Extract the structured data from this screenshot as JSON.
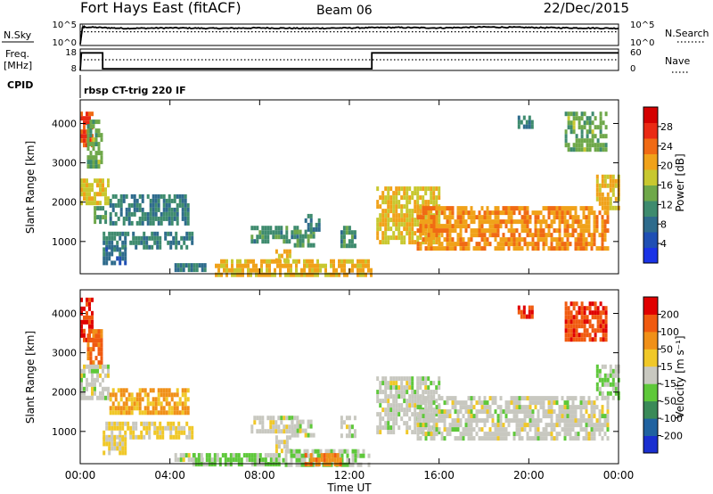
{
  "header": {
    "station": "Fort Hays East (fitACF)",
    "beam": "Beam 06",
    "date": "22/Dec/2015"
  },
  "strip_nsky": {
    "left_label": "N.Sky",
    "right_label": "N.Search",
    "left_ticks": [
      "10^5",
      "10^0"
    ],
    "right_ticks": [
      "10^5",
      "10^0"
    ]
  },
  "strip_freq": {
    "left_label_1": "Freq.",
    "left_label_2": "[MHz]",
    "right_label": "Nave",
    "left_ticks": [
      "18",
      "8"
    ],
    "right_ticks": [
      "60",
      "0"
    ]
  },
  "strip_cpid": {
    "label": "CPID",
    "program": "rbsp CT-trig 220 IF"
  },
  "x_axis": {
    "title": "Time UT",
    "ticks": [
      "00:00",
      "04:00",
      "08:00",
      "12:00",
      "16:00",
      "20:00",
      "00:00"
    ]
  },
  "panels": {
    "power": {
      "ylabel": "Slant Range [km]",
      "yticks": [
        "4000",
        "3000",
        "2000",
        "1000"
      ],
      "colorbar_label": "Power [dB]",
      "colorbar_ticks": [
        "28",
        "24",
        "20",
        "16",
        "12",
        "8",
        "4"
      ],
      "colors": [
        "#1a33e6",
        "#1f4fb4",
        "#2e6b8c",
        "#3e8b6e",
        "#6fa84a",
        "#c8c830",
        "#f0a21a",
        "#f06a14",
        "#ea2a14",
        "#d40000"
      ]
    },
    "velocity": {
      "ylabel": "Slant Range [km]",
      "yticks": [
        "4000",
        "3000",
        "2000",
        "1000"
      ],
      "colorbar_label": "Velocity [m s⁻¹]",
      "colorbar_ticks": [
        "200",
        "100",
        "50",
        "15",
        "-15",
        "-50",
        "-100",
        "-200"
      ],
      "colors": [
        "#1a2fd0",
        "#2062a0",
        "#3a8a58",
        "#5ec83a",
        "#c8c8c0",
        "#f0c828",
        "#f09018",
        "#f05a10",
        "#e00000"
      ]
    }
  },
  "chart_data": [
    {
      "type": "line",
      "name_left": "N.Sky",
      "name_right": "N.Search",
      "x_unit": "hours UT",
      "xlim": [
        0,
        24
      ],
      "ylim": [
        0,
        5
      ],
      "series": [
        {
          "name": "N.Sky",
          "style": "solid",
          "x": [
            0,
            0.1,
            0.2,
            2,
            4,
            6,
            8,
            10,
            12,
            14,
            16,
            18,
            20,
            22,
            24
          ],
          "y": [
            0.3,
            4.2,
            4.3,
            4.0,
            4.1,
            4.0,
            4.1,
            4.0,
            4.1,
            4.2,
            4.1,
            4.3,
            4.2,
            4.1,
            4.0
          ]
        },
        {
          "name": "N.Search",
          "style": "dotted",
          "x": [
            0,
            4,
            8,
            12,
            16,
            20,
            24
          ],
          "y": [
            3.2,
            3.2,
            3.2,
            3.2,
            3.2,
            3.2,
            3.2
          ]
        }
      ]
    },
    {
      "type": "line",
      "x_unit": "hours UT",
      "xlim": [
        0,
        24
      ],
      "ylim_left": [
        8,
        18
      ],
      "ylim_right": [
        0,
        60
      ],
      "series": [
        {
          "name": "Freq.",
          "style": "solid",
          "x": [
            0,
            0.05,
            1.0,
            1.0,
            13.0,
            13.0,
            24
          ],
          "y": [
            8,
            16.2,
            16.2,
            8.8,
            8.8,
            16.2,
            16.2
          ]
        },
        {
          "name": "Nave",
          "style": "dotted",
          "x": [
            0,
            4,
            8,
            12,
            16,
            20,
            24
          ],
          "y": [
            30,
            30,
            30,
            30,
            30,
            30,
            30
          ]
        }
      ]
    },
    {
      "type": "heatmap",
      "quantity": "Power",
      "units": "dB",
      "xlabel": "Time UT",
      "ylabel": "Slant Range [km]",
      "xlim": [
        0,
        24
      ],
      "ylim": [
        180,
        4600
      ],
      "clim": [
        0,
        32
      ],
      "regions": [
        {
          "x": [
            0,
            0.5
          ],
          "y": [
            3500,
            4300
          ],
          "v": 26
        },
        {
          "x": [
            0.3,
            0.9
          ],
          "y": [
            2900,
            4100
          ],
          "v": 14
        },
        {
          "x": [
            0,
            1.2
          ],
          "y": [
            2000,
            2600
          ],
          "v": 18
        },
        {
          "x": [
            0.6,
            1.1
          ],
          "y": [
            1500,
            1900
          ],
          "v": 12
        },
        {
          "x": [
            1.3,
            4.8
          ],
          "y": [
            1500,
            2200
          ],
          "v": 10
        },
        {
          "x": [
            1.0,
            5.0
          ],
          "y": [
            850,
            1250
          ],
          "v": 10
        },
        {
          "x": [
            1.0,
            2.0
          ],
          "y": [
            500,
            850
          ],
          "v": 8
        },
        {
          "x": [
            4.2,
            5.6
          ],
          "y": [
            250,
            450
          ],
          "v": 9
        },
        {
          "x": [
            7.6,
            9.8
          ],
          "y": [
            1050,
            1400
          ],
          "v": 11
        },
        {
          "x": [
            8.7,
            9.4
          ],
          "y": [
            550,
            800
          ],
          "v": 20
        },
        {
          "x": [
            9.4,
            10.4
          ],
          "y": [
            850,
            1300
          ],
          "v": 12
        },
        {
          "x": [
            10.0,
            10.6
          ],
          "y": [
            1350,
            1700
          ],
          "v": 10
        },
        {
          "x": [
            11.6,
            12.3
          ],
          "y": [
            850,
            1400
          ],
          "v": 11
        },
        {
          "x": [
            6.0,
            13.0
          ],
          "y": [
            200,
            550
          ],
          "v": 20
        },
        {
          "x": [
            13.2,
            16.0
          ],
          "y": [
            1000,
            2400
          ],
          "v": 19
        },
        {
          "x": [
            15.0,
            23.5
          ],
          "y": [
            800,
            1900
          ],
          "v": 22
        },
        {
          "x": [
            23.0,
            24.0
          ],
          "y": [
            1800,
            2700
          ],
          "v": 20
        },
        {
          "x": [
            19.5,
            20.2
          ],
          "y": [
            3900,
            4200
          ],
          "v": 10
        },
        {
          "x": [
            21.6,
            23.4
          ],
          "y": [
            3300,
            4300
          ],
          "v": 14
        }
      ]
    },
    {
      "type": "heatmap",
      "quantity": "Velocity",
      "units": "m s-1",
      "xlabel": "Time UT",
      "ylabel": "Slant Range [km]",
      "xlim": [
        0,
        24
      ],
      "ylim": [
        180,
        4600
      ],
      "clim": [
        -250,
        250
      ],
      "regions": [
        {
          "x": [
            0,
            0.5
          ],
          "y": [
            3300,
            4400
          ],
          "v": 210
        },
        {
          "x": [
            0.3,
            0.9
          ],
          "y": [
            2800,
            3600
          ],
          "v": 160
        },
        {
          "x": [
            0,
            1.2
          ],
          "y": [
            1900,
            2700
          ],
          "v": 0
        },
        {
          "x": [
            1.3,
            4.8
          ],
          "y": [
            1500,
            2100
          ],
          "v": 90
        },
        {
          "x": [
            1.0,
            5.0
          ],
          "y": [
            850,
            1250
          ],
          "v": 40
        },
        {
          "x": [
            1.0,
            2.0
          ],
          "y": [
            500,
            850
          ],
          "v": 45
        },
        {
          "x": [
            4.2,
            5.6
          ],
          "y": [
            250,
            450
          ],
          "v": 0
        },
        {
          "x": [
            7.6,
            9.8
          ],
          "y": [
            1050,
            1400
          ],
          "v": 0
        },
        {
          "x": [
            8.7,
            9.4
          ],
          "y": [
            550,
            900
          ],
          "v": 0
        },
        {
          "x": [
            9.4,
            10.4
          ],
          "y": [
            850,
            1300
          ],
          "v": 0
        },
        {
          "x": [
            11.6,
            12.3
          ],
          "y": [
            850,
            1400
          ],
          "v": 0
        },
        {
          "x": [
            5.0,
            9.0
          ],
          "y": [
            200,
            450
          ],
          "v": -45
        },
        {
          "x": [
            9.0,
            13.0
          ],
          "y": [
            200,
            550
          ],
          "v": -30
        },
        {
          "x": [
            10.0,
            11.6
          ],
          "y": [
            220,
            450
          ],
          "v": 120
        },
        {
          "x": [
            13.2,
            16.0
          ],
          "y": [
            1000,
            2400
          ],
          "v": 0
        },
        {
          "x": [
            15.0,
            23.5
          ],
          "y": [
            800,
            1900
          ],
          "v": 0
        },
        {
          "x": [
            23.0,
            24.0
          ],
          "y": [
            1800,
            2700
          ],
          "v": -30
        },
        {
          "x": [
            19.5,
            20.2
          ],
          "y": [
            3900,
            4200
          ],
          "v": 200
        },
        {
          "x": [
            21.6,
            23.4
          ],
          "y": [
            3300,
            4300
          ],
          "v": 180
        }
      ]
    }
  ]
}
